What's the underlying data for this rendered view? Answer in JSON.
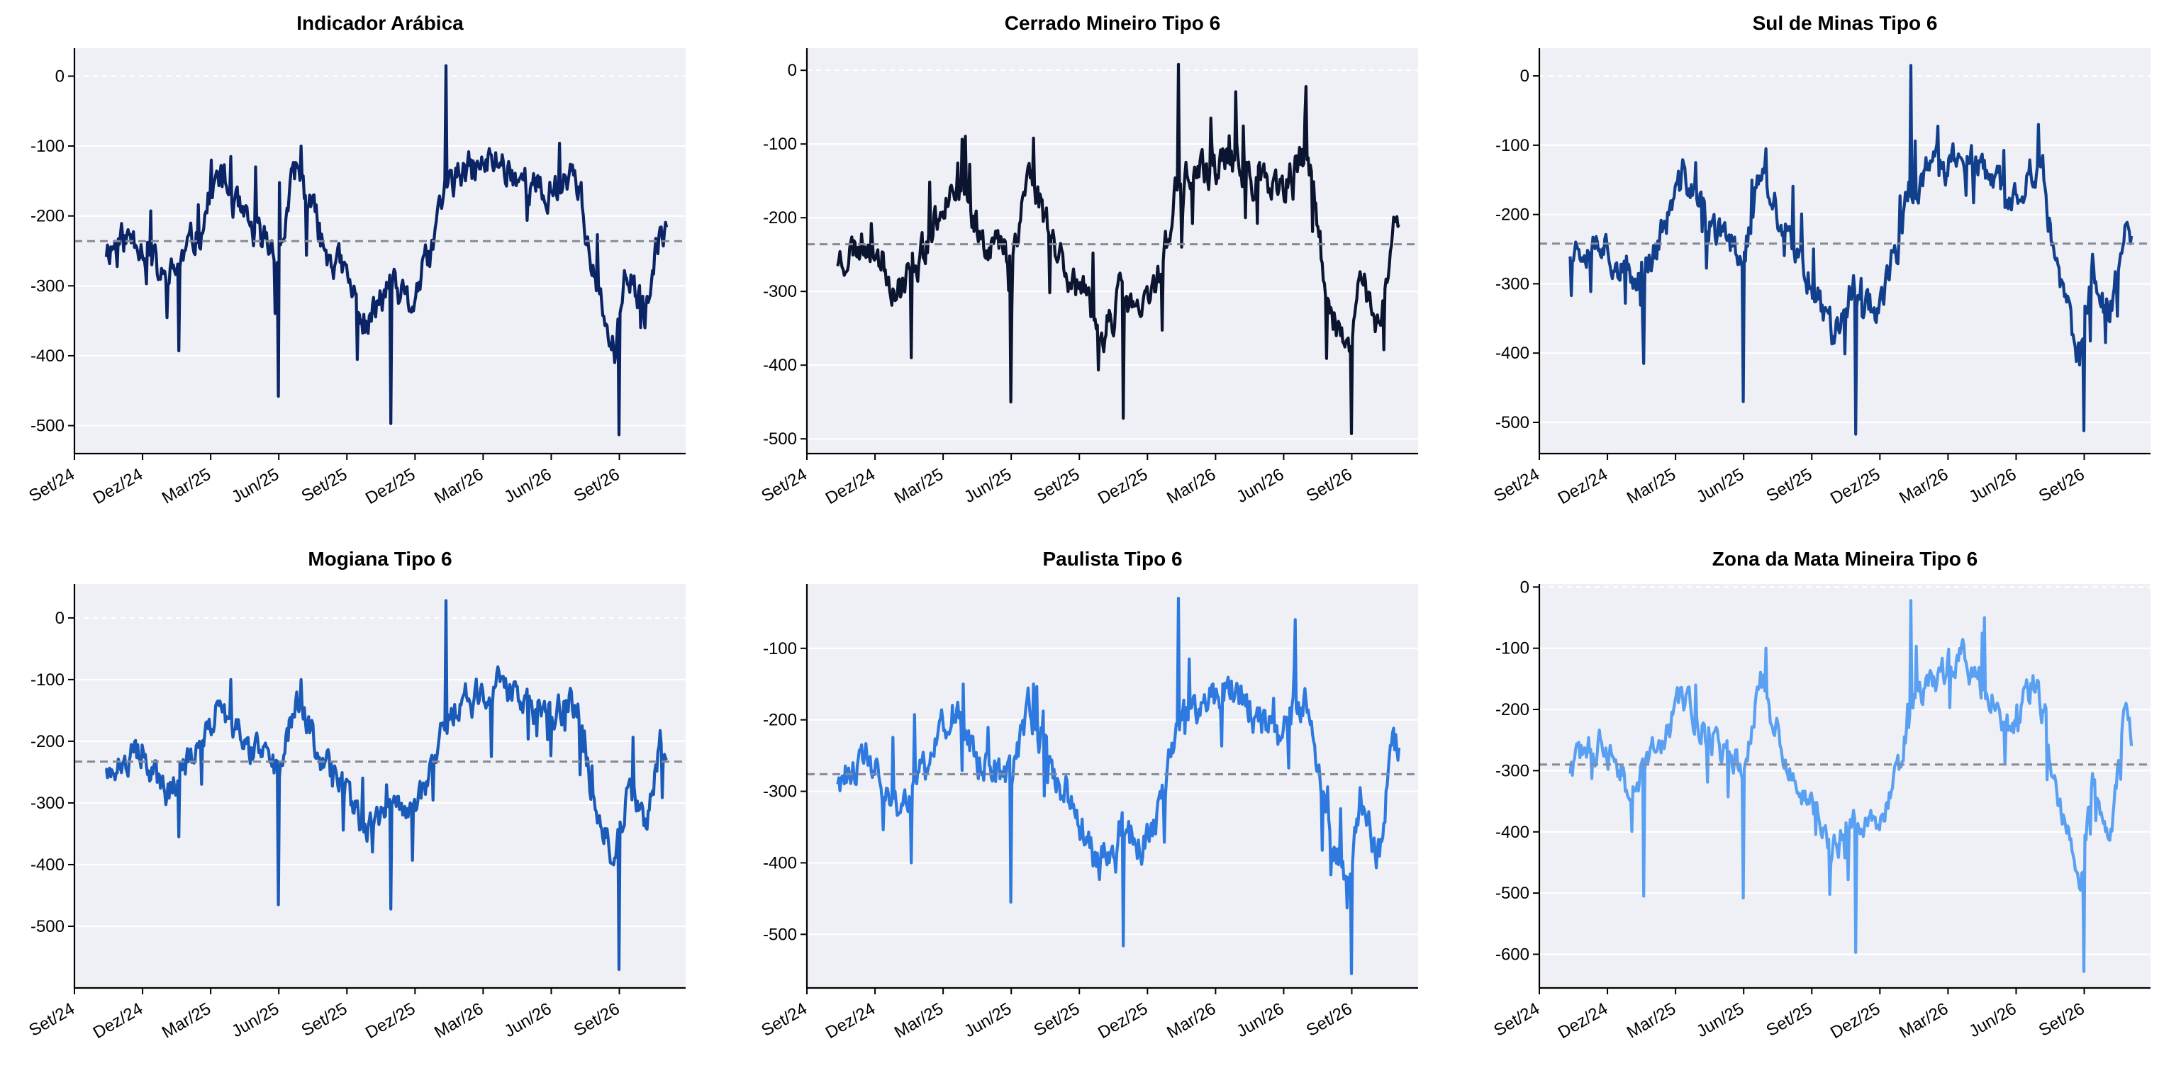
{
  "chart_data": [
    {
      "type": "line",
      "title": "Indicador Arábica",
      "color": "#0b2465",
      "seed": 11,
      "ylim": [
        -540,
        40
      ],
      "yticks": [
        0,
        -100,
        -200,
        -300,
        -400,
        -500
      ],
      "xticks": [
        "Set/24",
        "Dez/24",
        "Mar/25",
        "Jun/25",
        "Set/25",
        "Dez/25",
        "Mar/26",
        "Jun/26",
        "Set/26"
      ],
      "mean_line": -236,
      "anchors": [
        [
          2024.78,
          -245
        ],
        [
          2024.9,
          -228
        ],
        [
          2025.0,
          -300
        ],
        [
          2025.1,
          -240
        ],
        [
          2025.2,
          -140
        ],
        [
          2025.3,
          -220
        ],
        [
          2025.42,
          -250
        ],
        [
          2025.48,
          -130
        ],
        [
          2025.58,
          -240
        ],
        [
          2025.66,
          -285
        ],
        [
          2025.74,
          -360
        ],
        [
          2025.82,
          -300
        ],
        [
          2025.9,
          -330
        ],
        [
          2025.98,
          -250
        ],
        [
          2026.02,
          -160
        ],
        [
          2026.1,
          -140
        ],
        [
          2026.22,
          -120
        ],
        [
          2026.32,
          -150
        ],
        [
          2026.4,
          -175
        ],
        [
          2026.48,
          -135
        ],
        [
          2026.52,
          -150
        ],
        [
          2026.56,
          -270
        ],
        [
          2026.6,
          -330
        ],
        [
          2026.65,
          -400
        ],
        [
          2026.7,
          -270
        ],
        [
          2026.76,
          -350
        ],
        [
          2026.82,
          -220
        ],
        [
          2026.84,
          -213
        ]
      ],
      "spikes": [
        [
          2026.031,
          15
        ],
        [
          2026.667,
          -513
        ],
        [
          2025.829,
          -497
        ],
        [
          2025.417,
          -458
        ],
        [
          2025.05,
          -393
        ],
        [
          2025.24,
          -115
        ],
        [
          2025.5,
          -100
        ]
      ]
    },
    {
      "type": "line",
      "title": "Cerrado Mineiro Tipo 6",
      "color": "#0c1530",
      "seed": 23,
      "ylim": [
        -520,
        30
      ],
      "yticks": [
        0,
        -100,
        -200,
        -300,
        -400,
        -500
      ],
      "xticks": [
        "Set/24",
        "Dez/24",
        "Mar/25",
        "Jun/25",
        "Set/25",
        "Dez/25",
        "Mar/26",
        "Jun/26",
        "Set/26"
      ],
      "mean_line": -236,
      "anchors": [
        [
          2024.78,
          -255
        ],
        [
          2024.9,
          -228
        ],
        [
          2025.0,
          -300
        ],
        [
          2025.1,
          -240
        ],
        [
          2025.2,
          -145
        ],
        [
          2025.3,
          -220
        ],
        [
          2025.42,
          -250
        ],
        [
          2025.48,
          -135
        ],
        [
          2025.58,
          -240
        ],
        [
          2025.66,
          -290
        ],
        [
          2025.74,
          -365
        ],
        [
          2025.82,
          -305
        ],
        [
          2025.9,
          -335
        ],
        [
          2025.98,
          -250
        ],
        [
          2026.02,
          -160
        ],
        [
          2026.1,
          -140
        ],
        [
          2026.22,
          -120
        ],
        [
          2026.32,
          -150
        ],
        [
          2026.4,
          -175
        ],
        [
          2026.48,
          -120
        ],
        [
          2026.52,
          -150
        ],
        [
          2026.56,
          -270
        ],
        [
          2026.6,
          -330
        ],
        [
          2026.65,
          -400
        ],
        [
          2026.7,
          -270
        ],
        [
          2026.76,
          -350
        ],
        [
          2026.82,
          -220
        ],
        [
          2026.84,
          -210
        ]
      ],
      "spikes": [
        [
          2026.031,
          8
        ],
        [
          2026.667,
          -493
        ],
        [
          2025.829,
          -472
        ],
        [
          2025.417,
          -450
        ],
        [
          2025.05,
          -390
        ],
        [
          2025.24,
          -95
        ],
        [
          2025.5,
          -92
        ],
        [
          2026.5,
          -22
        ]
      ]
    },
    {
      "type": "line",
      "title": "Sul de Minas Tipo 6",
      "color": "#123f8c",
      "seed": 37,
      "ylim": [
        -545,
        40
      ],
      "yticks": [
        0,
        -100,
        -200,
        -300,
        -400,
        -500
      ],
      "xticks": [
        "Set/24",
        "Dez/24",
        "Mar/25",
        "Jun/25",
        "Set/25",
        "Dez/25",
        "Mar/26",
        "Jun/26",
        "Set/26"
      ],
      "mean_line": -242,
      "anchors": [
        [
          2024.78,
          -250
        ],
        [
          2024.9,
          -232
        ],
        [
          2025.0,
          -305
        ],
        [
          2025.1,
          -245
        ],
        [
          2025.2,
          -140
        ],
        [
          2025.3,
          -225
        ],
        [
          2025.42,
          -255
        ],
        [
          2025.48,
          -135
        ],
        [
          2025.58,
          -245
        ],
        [
          2025.66,
          -290
        ],
        [
          2025.74,
          -365
        ],
        [
          2025.82,
          -305
        ],
        [
          2025.9,
          -335
        ],
        [
          2025.98,
          -255
        ],
        [
          2026.02,
          -165
        ],
        [
          2026.1,
          -140
        ],
        [
          2026.22,
          -115
        ],
        [
          2026.32,
          -150
        ],
        [
          2026.4,
          -180
        ],
        [
          2026.48,
          -130
        ],
        [
          2026.52,
          -150
        ],
        [
          2026.56,
          -275
        ],
        [
          2026.6,
          -335
        ],
        [
          2026.65,
          -410
        ],
        [
          2026.7,
          -275
        ],
        [
          2026.76,
          -355
        ],
        [
          2026.82,
          -195
        ],
        [
          2026.84,
          -218
        ]
      ],
      "spikes": [
        [
          2026.031,
          15
        ],
        [
          2026.667,
          -512
        ],
        [
          2025.829,
          -517
        ],
        [
          2025.417,
          -470
        ],
        [
          2025.05,
          -415
        ],
        [
          2025.24,
          -125
        ],
        [
          2025.5,
          -105
        ],
        [
          2026.5,
          -70
        ]
      ]
    },
    {
      "type": "line",
      "title": "Mogiana Tipo 6",
      "color": "#1a5ab8",
      "seed": 49,
      "ylim": [
        -600,
        55
      ],
      "yticks": [
        0,
        -100,
        -200,
        -300,
        -400,
        -500
      ],
      "xticks": [
        "Set/24",
        "Dez/24",
        "Mar/25",
        "Jun/25",
        "Set/25",
        "Dez/25",
        "Mar/26",
        "Jun/26",
        "Set/26"
      ],
      "mean_line": -233,
      "anchors": [
        [
          2024.78,
          -235
        ],
        [
          2024.9,
          -215
        ],
        [
          2025.0,
          -290
        ],
        [
          2025.1,
          -225
        ],
        [
          2025.2,
          -140
        ],
        [
          2025.3,
          -210
        ],
        [
          2025.42,
          -245
        ],
        [
          2025.48,
          -130
        ],
        [
          2025.58,
          -235
        ],
        [
          2025.66,
          -280
        ],
        [
          2025.74,
          -355
        ],
        [
          2025.82,
          -300
        ],
        [
          2025.9,
          -330
        ],
        [
          2025.98,
          -250
        ],
        [
          2026.02,
          -160
        ],
        [
          2026.1,
          -135
        ],
        [
          2026.22,
          -110
        ],
        [
          2026.32,
          -140
        ],
        [
          2026.4,
          -170
        ],
        [
          2026.48,
          -135
        ],
        [
          2026.52,
          -150
        ],
        [
          2026.56,
          -270
        ],
        [
          2026.6,
          -330
        ],
        [
          2026.65,
          -400
        ],
        [
          2026.7,
          -265
        ],
        [
          2026.76,
          -350
        ],
        [
          2026.82,
          -200
        ],
        [
          2026.84,
          -245
        ]
      ],
      "spikes": [
        [
          2026.031,
          28
        ],
        [
          2026.667,
          -570
        ],
        [
          2025.829,
          -472
        ],
        [
          2025.417,
          -465
        ],
        [
          2025.05,
          -355
        ],
        [
          2025.24,
          -100
        ],
        [
          2025.5,
          -100
        ]
      ]
    },
    {
      "type": "line",
      "title": "Paulista Tipo 6",
      "color": "#2e79df",
      "seed": 61,
      "ylim": [
        -575,
        -10
      ],
      "yticks": [
        -100,
        -200,
        -300,
        -400,
        -500
      ],
      "xticks": [
        "Set/24",
        "Dez/24",
        "Mar/25",
        "Jun/25",
        "Set/25",
        "Dez/25",
        "Mar/26",
        "Jun/26",
        "Set/26"
      ],
      "mean_line": -276,
      "anchors": [
        [
          2024.78,
          -280
        ],
        [
          2024.9,
          -260
        ],
        [
          2025.0,
          -330
        ],
        [
          2025.1,
          -270
        ],
        [
          2025.2,
          -190
        ],
        [
          2025.3,
          -260
        ],
        [
          2025.42,
          -290
        ],
        [
          2025.48,
          -180
        ],
        [
          2025.58,
          -280
        ],
        [
          2025.66,
          -330
        ],
        [
          2025.74,
          -410
        ],
        [
          2025.82,
          -350
        ],
        [
          2025.9,
          -380
        ],
        [
          2025.98,
          -300
        ],
        [
          2026.02,
          -205
        ],
        [
          2026.1,
          -185
        ],
        [
          2026.22,
          -155
        ],
        [
          2026.32,
          -195
        ],
        [
          2026.4,
          -225
        ],
        [
          2026.48,
          -175
        ],
        [
          2026.52,
          -195
        ],
        [
          2026.56,
          -310
        ],
        [
          2026.6,
          -370
        ],
        [
          2026.65,
          -440
        ],
        [
          2026.7,
          -305
        ],
        [
          2026.76,
          -390
        ],
        [
          2026.82,
          -230
        ],
        [
          2026.84,
          -238
        ]
      ],
      "spikes": [
        [
          2026.031,
          -30
        ],
        [
          2026.667,
          -555
        ],
        [
          2025.829,
          -516
        ],
        [
          2025.417,
          -455
        ],
        [
          2025.05,
          -400
        ],
        [
          2025.24,
          -150
        ],
        [
          2025.5,
          -150
        ],
        [
          2026.46,
          -60
        ]
      ]
    },
    {
      "type": "line",
      "title": "Zona da Mata Mineira Tipo 6",
      "color": "#5aa0f2",
      "seed": 73,
      "ylim": [
        -655,
        5
      ],
      "yticks": [
        0,
        -100,
        -200,
        -300,
        -400,
        -500,
        -600
      ],
      "xticks": [
        "Set/24",
        "Dez/24",
        "Mar/25",
        "Jun/25",
        "Set/25",
        "Dez/25",
        "Mar/26",
        "Jun/26",
        "Set/26"
      ],
      "mean_line": -290,
      "anchors": [
        [
          2024.78,
          -295
        ],
        [
          2024.9,
          -250
        ],
        [
          2025.0,
          -340
        ],
        [
          2025.1,
          -260
        ],
        [
          2025.2,
          -185
        ],
        [
          2025.3,
          -255
        ],
        [
          2025.42,
          -300
        ],
        [
          2025.48,
          -150
        ],
        [
          2025.58,
          -300
        ],
        [
          2025.66,
          -350
        ],
        [
          2025.74,
          -440
        ],
        [
          2025.82,
          -380
        ],
        [
          2025.9,
          -400
        ],
        [
          2025.98,
          -310
        ],
        [
          2026.02,
          -210
        ],
        [
          2026.1,
          -150
        ],
        [
          2026.22,
          -110
        ],
        [
          2026.32,
          -180
        ],
        [
          2026.4,
          -230
        ],
        [
          2026.48,
          -160
        ],
        [
          2026.52,
          -200
        ],
        [
          2026.56,
          -330
        ],
        [
          2026.6,
          -390
        ],
        [
          2026.65,
          -480
        ],
        [
          2026.7,
          -310
        ],
        [
          2026.76,
          -400
        ],
        [
          2026.82,
          -210
        ],
        [
          2026.84,
          -250
        ]
      ],
      "spikes": [
        [
          2026.031,
          -22
        ],
        [
          2026.667,
          -628
        ],
        [
          2025.829,
          -597
        ],
        [
          2025.417,
          -508
        ],
        [
          2025.05,
          -505
        ],
        [
          2025.24,
          -160
        ],
        [
          2025.5,
          -100
        ],
        [
          2026.3,
          -50
        ]
      ]
    }
  ]
}
